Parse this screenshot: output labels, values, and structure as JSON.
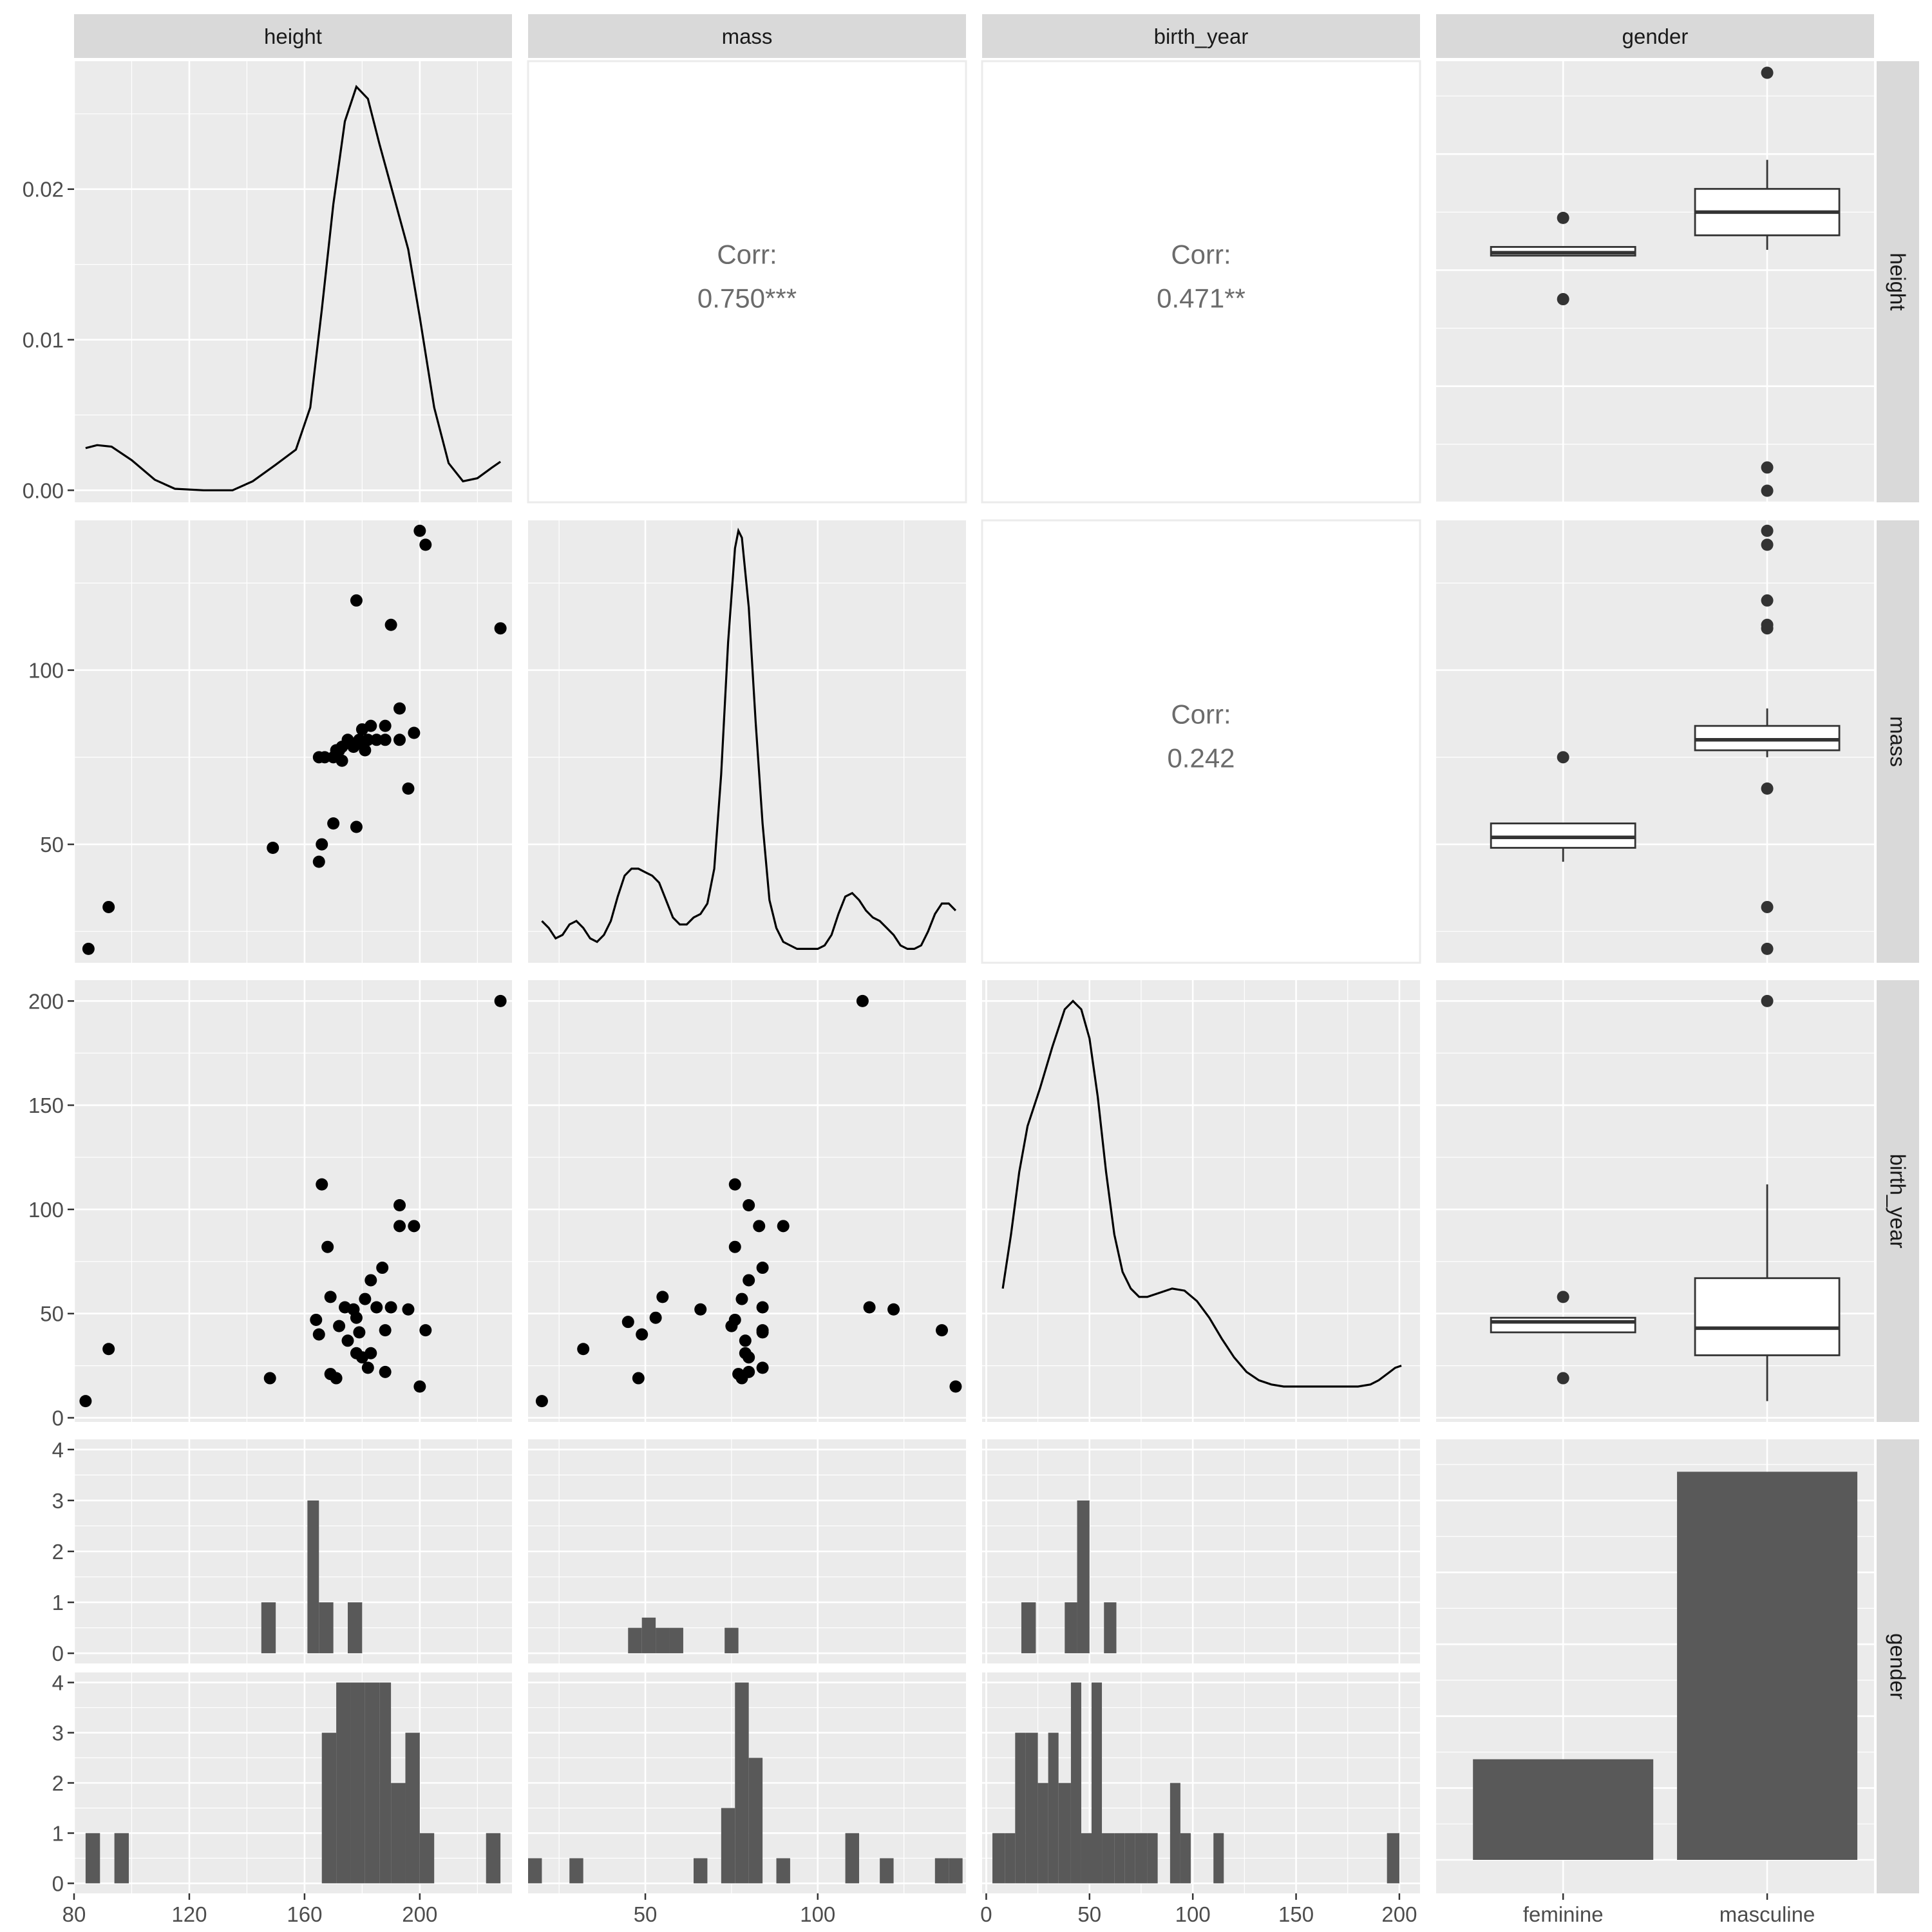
{
  "chart_data": {
    "type": "pairs",
    "variables": [
      "height",
      "mass",
      "birth_year",
      "gender"
    ],
    "axes": {
      "height": {
        "range": [
          80,
          232
        ],
        "ticks": [
          80,
          120,
          160,
          200
        ]
      },
      "mass": {
        "range": [
          16,
          143
        ],
        "ticks": [
          50,
          100
        ]
      },
      "birth_year": {
        "range": [
          -2,
          210
        ],
        "ticks": [
          0,
          50,
          100,
          150,
          200
        ]
      },
      "gender": {
        "categories": [
          "feminine",
          "masculine"
        ]
      },
      "density_height": {
        "range": [
          -0.0008,
          0.0285
        ],
        "ticks": [
          0.0,
          0.01,
          0.02
        ],
        "tick_labels": [
          "0.00",
          "0.01",
          "0.02"
        ]
      },
      "count": {
        "range": [
          -0.2,
          4.2
        ],
        "ticks": [
          0,
          1,
          2,
          3,
          4
        ]
      }
    },
    "correlations": [
      {
        "row": "height",
        "col": "mass",
        "label": "Corr:",
        "value": "0.750***"
      },
      {
        "row": "height",
        "col": "birth_year",
        "label": "Corr:",
        "value": "0.471**"
      },
      {
        "row": "mass",
        "col": "birth_year",
        "label": "Corr:",
        "value": "0.242"
      }
    ],
    "density": {
      "height": [
        [
          84,
          0.0028
        ],
        [
          88,
          0.003
        ],
        [
          93,
          0.0029
        ],
        [
          100,
          0.002
        ],
        [
          108,
          0.0007
        ],
        [
          115,
          0.0001
        ],
        [
          125,
          0
        ],
        [
          135,
          0
        ],
        [
          142,
          0.0006
        ],
        [
          150,
          0.0017
        ],
        [
          157,
          0.0027
        ],
        [
          162,
          0.0055
        ],
        [
          166,
          0.012
        ],
        [
          170,
          0.019
        ],
        [
          174,
          0.0245
        ],
        [
          178,
          0.0268
        ],
        [
          182,
          0.026
        ],
        [
          186,
          0.023
        ],
        [
          191,
          0.0195
        ],
        [
          196,
          0.016
        ],
        [
          200,
          0.0115
        ],
        [
          205,
          0.0055
        ],
        [
          210,
          0.0018
        ],
        [
          215,
          0.0006
        ],
        [
          220,
          0.0008
        ],
        [
          225,
          0.0015
        ],
        [
          228,
          0.0019
        ]
      ],
      "mass": [
        [
          20,
          28
        ],
        [
          22,
          26
        ],
        [
          24,
          23
        ],
        [
          26,
          24
        ],
        [
          28,
          27
        ],
        [
          30,
          28
        ],
        [
          32,
          26
        ],
        [
          34,
          23
        ],
        [
          36,
          22
        ],
        [
          38,
          24
        ],
        [
          40,
          28
        ],
        [
          42,
          35
        ],
        [
          44,
          41
        ],
        [
          46,
          43
        ],
        [
          48,
          43
        ],
        [
          50,
          42
        ],
        [
          52,
          41
        ],
        [
          54,
          39
        ],
        [
          56,
          34
        ],
        [
          58,
          29
        ],
        [
          60,
          27
        ],
        [
          62,
          27
        ],
        [
          64,
          29
        ],
        [
          66,
          30
        ],
        [
          68,
          33
        ],
        [
          70,
          43
        ],
        [
          72,
          70
        ],
        [
          74,
          108
        ],
        [
          76,
          135
        ],
        [
          77,
          140
        ],
        [
          78,
          138
        ],
        [
          80,
          118
        ],
        [
          82,
          85
        ],
        [
          84,
          56
        ],
        [
          86,
          34
        ],
        [
          88,
          26
        ],
        [
          90,
          22
        ],
        [
          92,
          21
        ],
        [
          94,
          20
        ],
        [
          96,
          20
        ],
        [
          98,
          20
        ],
        [
          100,
          20
        ],
        [
          102,
          21
        ],
        [
          104,
          24
        ],
        [
          106,
          30
        ],
        [
          108,
          35
        ],
        [
          110,
          36
        ],
        [
          112,
          34
        ],
        [
          114,
          31
        ],
        [
          116,
          29
        ],
        [
          118,
          28
        ],
        [
          120,
          26
        ],
        [
          122,
          24
        ],
        [
          124,
          21
        ],
        [
          126,
          20
        ],
        [
          128,
          20
        ],
        [
          130,
          21
        ],
        [
          132,
          25
        ],
        [
          134,
          30
        ],
        [
          136,
          33
        ],
        [
          138,
          33
        ],
        [
          140,
          31
        ]
      ],
      "birth_year": [
        [
          8,
          62
        ],
        [
          12,
          88
        ],
        [
          16,
          118
        ],
        [
          20,
          140
        ],
        [
          26,
          158
        ],
        [
          32,
          178
        ],
        [
          38,
          196
        ],
        [
          42,
          200
        ],
        [
          46,
          196
        ],
        [
          50,
          182
        ],
        [
          54,
          154
        ],
        [
          58,
          118
        ],
        [
          62,
          88
        ],
        [
          66,
          70
        ],
        [
          70,
          62
        ],
        [
          74,
          58
        ],
        [
          78,
          58
        ],
        [
          84,
          60
        ],
        [
          90,
          62
        ],
        [
          96,
          61
        ],
        [
          102,
          56
        ],
        [
          108,
          48
        ],
        [
          114,
          38
        ],
        [
          120,
          29
        ],
        [
          126,
          22
        ],
        [
          132,
          18
        ],
        [
          138,
          16
        ],
        [
          144,
          15
        ],
        [
          150,
          15
        ],
        [
          160,
          15
        ],
        [
          170,
          15
        ],
        [
          180,
          15
        ],
        [
          186,
          16
        ],
        [
          190,
          18
        ],
        [
          194,
          21
        ],
        [
          198,
          24
        ],
        [
          201,
          25
        ]
      ]
    },
    "scatter": {
      "mass_vs_height": [
        [
          85,
          20
        ],
        [
          92,
          32
        ],
        [
          149,
          49
        ],
        [
          165,
          45
        ],
        [
          165,
          75
        ],
        [
          166,
          50
        ],
        [
          167,
          75
        ],
        [
          170,
          75
        ],
        [
          170,
          56
        ],
        [
          171,
          77
        ],
        [
          172,
          77
        ],
        [
          173,
          78
        ],
        [
          173,
          74
        ],
        [
          175,
          80
        ],
        [
          177,
          78
        ],
        [
          178,
          55
        ],
        [
          178,
          120
        ],
        [
          179,
          80
        ],
        [
          180,
          79
        ],
        [
          180,
          83
        ],
        [
          181,
          77
        ],
        [
          182,
          80
        ],
        [
          183,
          84
        ],
        [
          185,
          80
        ],
        [
          188,
          84
        ],
        [
          188,
          80
        ],
        [
          190,
          113
        ],
        [
          193,
          89
        ],
        [
          193,
          80
        ],
        [
          196,
          66
        ],
        [
          198,
          82
        ],
        [
          200,
          140
        ],
        [
          202,
          136
        ],
        [
          228,
          112
        ]
      ],
      "birth_year_vs_height": [
        [
          84,
          8
        ],
        [
          92,
          33
        ],
        [
          148,
          19
        ],
        [
          164,
          47
        ],
        [
          165,
          40
        ],
        [
          166,
          112
        ],
        [
          168,
          82
        ],
        [
          169,
          58
        ],
        [
          169,
          21
        ],
        [
          171,
          19
        ],
        [
          172,
          44
        ],
        [
          174,
          53
        ],
        [
          175,
          37
        ],
        [
          177,
          52
        ],
        [
          178,
          48
        ],
        [
          178,
          31
        ],
        [
          179,
          41
        ],
        [
          180,
          29
        ],
        [
          181,
          57
        ],
        [
          182,
          24
        ],
        [
          183,
          66
        ],
        [
          183,
          31
        ],
        [
          185,
          53
        ],
        [
          187,
          72
        ],
        [
          188,
          42
        ],
        [
          188,
          22
        ],
        [
          190,
          53
        ],
        [
          193,
          102
        ],
        [
          193,
          92
        ],
        [
          196,
          52
        ],
        [
          198,
          92
        ],
        [
          200,
          15
        ],
        [
          202,
          42
        ],
        [
          228,
          200
        ]
      ],
      "birth_year_vs_mass": [
        [
          20,
          8
        ],
        [
          32,
          33
        ],
        [
          45,
          46
        ],
        [
          48,
          19
        ],
        [
          49,
          40
        ],
        [
          53,
          48
        ],
        [
          55,
          58
        ],
        [
          66,
          52
        ],
        [
          75,
          44
        ],
        [
          76,
          47
        ],
        [
          76,
          82
        ],
        [
          76,
          112
        ],
        [
          77,
          21
        ],
        [
          78,
          19
        ],
        [
          78,
          57
        ],
        [
          79,
          31
        ],
        [
          79,
          37
        ],
        [
          80,
          22
        ],
        [
          80,
          66
        ],
        [
          80,
          102
        ],
        [
          80,
          29
        ],
        [
          83,
          92
        ],
        [
          84,
          41
        ],
        [
          84,
          42
        ],
        [
          84,
          53
        ],
        [
          84,
          72
        ],
        [
          84,
          24
        ],
        [
          90,
          92
        ],
        [
          113,
          200
        ],
        [
          115,
          53
        ],
        [
          122,
          52
        ],
        [
          136,
          42
        ],
        [
          140,
          15
        ]
      ]
    },
    "boxplots": {
      "height": {
        "feminine": {
          "lo": 165,
          "q1": 165,
          "med": 166,
          "q3": 168,
          "hi": 168,
          "out": [
            178,
            150
          ]
        },
        "masculine": {
          "lo": 167,
          "q1": 172,
          "med": 180,
          "q3": 188,
          "hi": 198,
          "out": [
            228,
            92,
            84
          ]
        }
      },
      "mass": {
        "feminine": {
          "lo": 45,
          "q1": 49,
          "med": 52,
          "q3": 56,
          "hi": 56,
          "out": [
            75
          ]
        },
        "masculine": {
          "lo": 75,
          "q1": 77,
          "med": 80,
          "q3": 84,
          "hi": 89,
          "out": [
            140,
            136,
            120,
            113,
            112,
            66,
            32,
            20
          ]
        }
      },
      "birth_year": {
        "feminine": {
          "lo": 41,
          "q1": 41,
          "med": 46,
          "q3": 48,
          "hi": 48,
          "out": [
            58,
            19
          ]
        },
        "masculine": {
          "lo": 8,
          "q1": 30,
          "med": 43,
          "q3": 67,
          "hi": 112,
          "out": [
            200
          ]
        }
      }
    },
    "gender_counts": {
      "categories": [
        "feminine",
        "masculine"
      ],
      "values": [
        7,
        27
      ]
    },
    "histograms": {
      "height": {
        "feminine": [
          [
            145,
            150,
            1
          ],
          [
            161,
            165,
            3
          ],
          [
            165,
            170,
            1
          ],
          [
            175,
            180,
            1
          ]
        ],
        "masculine": [
          [
            84,
            89,
            1
          ],
          [
            94,
            99,
            1
          ],
          [
            166,
            171,
            3
          ],
          [
            171,
            176,
            4
          ],
          [
            176,
            181,
            4
          ],
          [
            181,
            186,
            4
          ],
          [
            186,
            190,
            4
          ],
          [
            190,
            195,
            2
          ],
          [
            195,
            200,
            3
          ],
          [
            200,
            205,
            1
          ],
          [
            223,
            228,
            1
          ]
        ]
      },
      "mass": {
        "feminine": [
          [
            45,
            49,
            0.5
          ],
          [
            49,
            53,
            0.7
          ],
          [
            53,
            57,
            0.5
          ],
          [
            57,
            61,
            0.5
          ],
          [
            73,
            77,
            0.5
          ]
        ],
        "masculine": [
          [
            16,
            20,
            0.5
          ],
          [
            28,
            32,
            0.5
          ],
          [
            64,
            68,
            0.5
          ],
          [
            72,
            76,
            1.5
          ],
          [
            76,
            80,
            4
          ],
          [
            80,
            84,
            2.5
          ],
          [
            88,
            92,
            0.5
          ],
          [
            108,
            112,
            1
          ],
          [
            118,
            122,
            0.5
          ],
          [
            134,
            138,
            0.5
          ],
          [
            138,
            142,
            0.5
          ]
        ]
      },
      "birth_year": {
        "feminine": [
          [
            17,
            24,
            1
          ],
          [
            38,
            44,
            1
          ],
          [
            44,
            50,
            3
          ],
          [
            57,
            63,
            1
          ]
        ],
        "masculine": [
          [
            3,
            9,
            1
          ],
          [
            9,
            14,
            1
          ],
          [
            14,
            19,
            3
          ],
          [
            19,
            25,
            3
          ],
          [
            25,
            30,
            2
          ],
          [
            30,
            35,
            3
          ],
          [
            35,
            41,
            2
          ],
          [
            41,
            46,
            4
          ],
          [
            46,
            51,
            1
          ],
          [
            51,
            56,
            4
          ],
          [
            56,
            62,
            1
          ],
          [
            62,
            67,
            1
          ],
          [
            67,
            72,
            1
          ],
          [
            72,
            78,
            1
          ],
          [
            78,
            83,
            1
          ],
          [
            89,
            94,
            2
          ],
          [
            94,
            99,
            1
          ],
          [
            110,
            115,
            1
          ],
          [
            194,
            200,
            1
          ]
        ]
      }
    }
  }
}
